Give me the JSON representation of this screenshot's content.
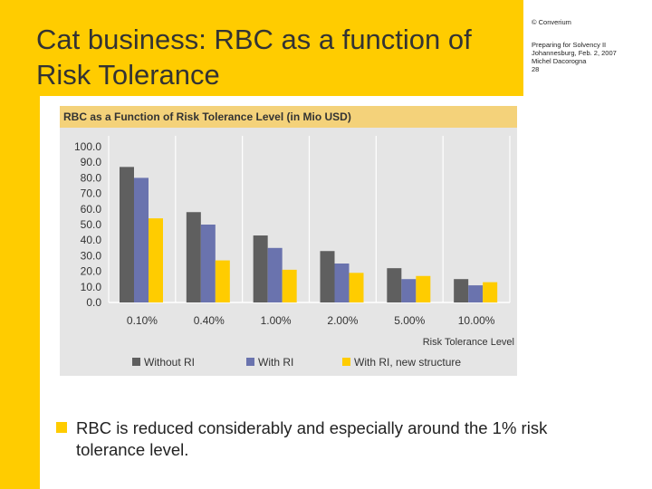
{
  "slide": {
    "title": "Cat business: RBC as a function of Risk Tolerance",
    "copyright": "© Converium",
    "meta_lines": [
      "Preparing for Solvency II",
      "Johannesburg, Feb. 2, 2007",
      "Michel Dacorogna",
      "28"
    ],
    "bullet": "RBC is reduced considerably and especially around the 1% risk tolerance level."
  },
  "colors": {
    "accent": "#FFCC00",
    "header_band": "#F4D27A",
    "chart_bg": "#E5E5E5",
    "grid": "#FFFFFF"
  },
  "chart_data": {
    "type": "bar",
    "title": "RBC as a Function of Risk Tolerance Level (in Mio USD)",
    "xlabel": "Risk Tolerance Level",
    "ylabel": "",
    "ylim": [
      0,
      100
    ],
    "yticks": [
      "100.0",
      "90.0",
      "80.0",
      "70.0",
      "60.0",
      "50.0",
      "40.0",
      "30.0",
      "20.0",
      "10.0",
      "0.0"
    ],
    "categories": [
      "0.10%",
      "0.40%",
      "1.00%",
      "2.00%",
      "5.00%",
      "10.00%"
    ],
    "series": [
      {
        "name": "Without RI",
        "color": "#5F5F5F",
        "values": [
          87,
          58,
          43,
          33,
          22,
          15
        ]
      },
      {
        "name": "With RI",
        "color": "#6A73AE",
        "values": [
          80,
          50,
          35,
          25,
          15,
          11
        ]
      },
      {
        "name": "With RI, new structure",
        "color": "#FFCC00",
        "values": [
          54,
          27,
          21,
          19,
          17,
          13
        ]
      }
    ],
    "grid": true,
    "legend_position": "bottom"
  }
}
